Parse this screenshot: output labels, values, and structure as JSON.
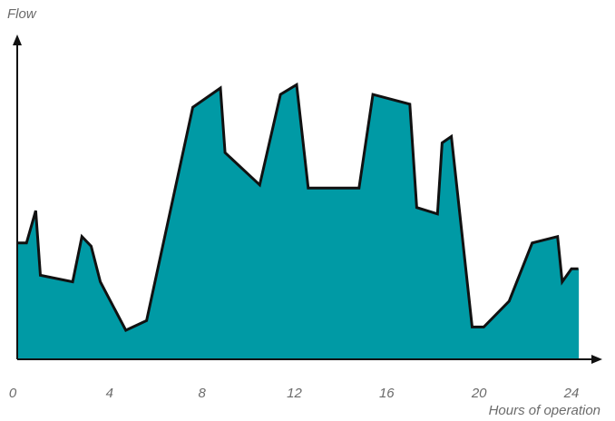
{
  "chart_data": {
    "type": "area",
    "title": "",
    "xlabel": "Hours of operation",
    "ylabel": "Flow",
    "x_ticks": [
      0,
      4,
      8,
      12,
      16,
      20,
      24
    ],
    "xlim": [
      0,
      24
    ],
    "ylim": [
      0,
      100
    ],
    "grid": false,
    "legend": "none",
    "fill_color": "#009aa5",
    "line_color": "#111111",
    "x": [
      0,
      0.4,
      0.8,
      1.0,
      2.4,
      2.8,
      3.2,
      3.6,
      4.7,
      5.6,
      7.6,
      8.8,
      9.0,
      10.5,
      11.4,
      12.1,
      12.6,
      14.4,
      14.8,
      15.4,
      17.0,
      17.3,
      18.2,
      18.4,
      18.8,
      19.7,
      20.2,
      21.3,
      22.3,
      23.4,
      23.6,
      24.0,
      24.3
    ],
    "y": [
      36,
      36,
      46,
      26,
      24,
      38,
      35,
      24,
      9,
      12,
      78,
      84,
      64,
      54,
      82,
      85,
      53,
      53,
      53,
      82,
      79,
      47,
      45,
      67,
      69,
      10,
      10,
      18,
      36,
      38,
      24,
      28,
      28
    ]
  }
}
